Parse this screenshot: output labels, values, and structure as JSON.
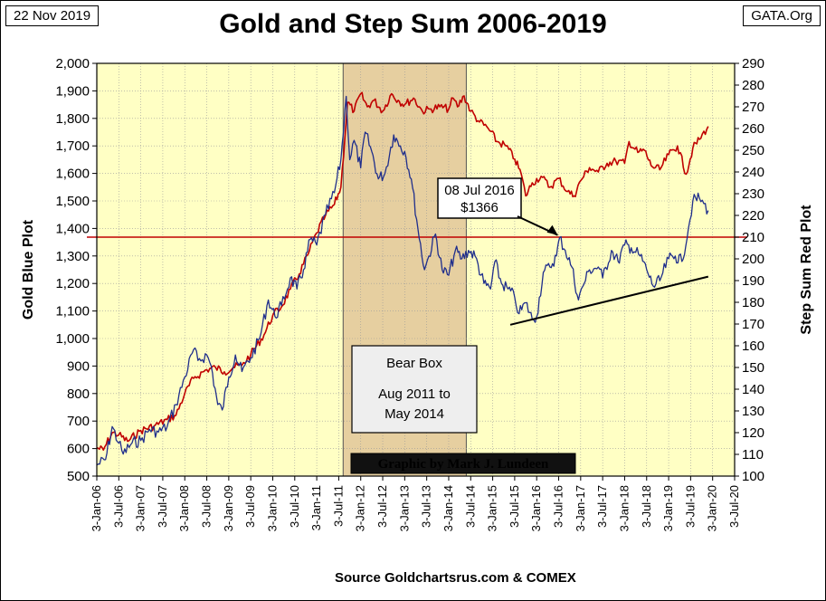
{
  "header": {
    "date": "22 Nov 2019",
    "site": "GATA.Org",
    "title": "Gold and Step Sum 2006-2019",
    "source": "Source Goldchartsrus.com & COMEX"
  },
  "colors": {
    "plot_bg": "#ffffc4",
    "bear_box": "#e6cfa0",
    "gold_line": "#1f2e8c",
    "step_line": "#c00000",
    "ref_line": "#c00000",
    "trend_line": "#000000"
  },
  "annotations": {
    "callout_line1": "08 Jul 2016",
    "callout_line2": "$1366",
    "bear_box_line1": "Bear Box",
    "bear_box_line2": "Aug 2011 to",
    "bear_box_line3": "May 2014",
    "credit": "Graphic by Mark J. Lundeen"
  },
  "chart_data": {
    "type": "line",
    "title": "Gold and Step Sum 2006-2019",
    "ylabel_left": "Gold    Blue Plot",
    "ylabel_right": "Step Sum      Red Plot",
    "ylim_left": [
      500,
      2000
    ],
    "ylim_right": [
      100,
      290
    ],
    "yticks_left": [
      "500",
      "600",
      "700",
      "800",
      "900",
      "1,000",
      "1,100",
      "1,200",
      "1,300",
      "1,400",
      "1,500",
      "1,600",
      "1,700",
      "1,800",
      "1,900",
      "2,000"
    ],
    "yticks_right": [
      "100",
      "110",
      "120",
      "130",
      "140",
      "150",
      "160",
      "170",
      "180",
      "190",
      "200",
      "210",
      "220",
      "230",
      "240",
      "250",
      "260",
      "270",
      "280",
      "290"
    ],
    "xticks": [
      "3-Jan-06",
      "3-Jul-06",
      "3-Jan-07",
      "3-Jul-07",
      "3-Jan-08",
      "3-Jul-08",
      "3-Jan-09",
      "3-Jul-09",
      "3-Jan-10",
      "3-Jul-10",
      "3-Jan-11",
      "3-Jul-11",
      "3-Jan-12",
      "3-Jul-12",
      "3-Jan-13",
      "3-Jul-13",
      "3-Jan-14",
      "3-Jul-14",
      "3-Jan-15",
      "3-Jul-15",
      "3-Jan-16",
      "3-Jul-16",
      "3-Jan-17",
      "3-Jul-17",
      "3-Jan-18",
      "3-Jul-18",
      "3-Jan-19",
      "3-Jul-19",
      "3-Jan-20",
      "3-Jul-20"
    ],
    "x_range_years": [
      2006.0,
      2020.5
    ],
    "bear_box_years": [
      2011.6,
      2014.4
    ],
    "reference_line_step_sum": 210,
    "callout_point": {
      "year": 2016.52,
      "gold": 1366
    },
    "trend_line": {
      "start": {
        "year": 2015.4,
        "gold": 1050
      },
      "end": {
        "year": 2019.9,
        "gold": 1225
      }
    },
    "series": [
      {
        "name": "Gold (Blue Plot)",
        "axis": "left",
        "points": [
          [
            2006.0,
            540
          ],
          [
            2006.2,
            560
          ],
          [
            2006.35,
            680
          ],
          [
            2006.5,
            620
          ],
          [
            2006.6,
            580
          ],
          [
            2006.8,
            620
          ],
          [
            2007.0,
            630
          ],
          [
            2007.2,
            670
          ],
          [
            2007.4,
            660
          ],
          [
            2007.6,
            680
          ],
          [
            2007.8,
            760
          ],
          [
            2008.0,
            860
          ],
          [
            2008.2,
            960
          ],
          [
            2008.3,
            920
          ],
          [
            2008.5,
            940
          ],
          [
            2008.6,
            900
          ],
          [
            2008.75,
            760
          ],
          [
            2008.85,
            740
          ],
          [
            2009.0,
            860
          ],
          [
            2009.15,
            940
          ],
          [
            2009.3,
            880
          ],
          [
            2009.5,
            930
          ],
          [
            2009.7,
            1000
          ],
          [
            2009.9,
            1140
          ],
          [
            2010.05,
            1080
          ],
          [
            2010.2,
            1120
          ],
          [
            2010.4,
            1220
          ],
          [
            2010.55,
            1180
          ],
          [
            2010.7,
            1250
          ],
          [
            2010.85,
            1360
          ],
          [
            2011.0,
            1340
          ],
          [
            2011.2,
            1450
          ],
          [
            2011.4,
            1530
          ],
          [
            2011.55,
            1650
          ],
          [
            2011.67,
            1880
          ],
          [
            2011.75,
            1650
          ],
          [
            2011.85,
            1720
          ],
          [
            2012.0,
            1620
          ],
          [
            2012.1,
            1750
          ],
          [
            2012.25,
            1680
          ],
          [
            2012.4,
            1580
          ],
          [
            2012.55,
            1600
          ],
          [
            2012.75,
            1740
          ],
          [
            2012.9,
            1700
          ],
          [
            2013.0,
            1680
          ],
          [
            2013.15,
            1580
          ],
          [
            2013.3,
            1400
          ],
          [
            2013.45,
            1250
          ],
          [
            2013.55,
            1300
          ],
          [
            2013.7,
            1380
          ],
          [
            2013.85,
            1250
          ],
          [
            2014.0,
            1230
          ],
          [
            2014.15,
            1320
          ],
          [
            2014.3,
            1290
          ],
          [
            2014.45,
            1320
          ],
          [
            2014.6,
            1300
          ],
          [
            2014.8,
            1200
          ],
          [
            2014.95,
            1180
          ],
          [
            2015.05,
            1280
          ],
          [
            2015.2,
            1200
          ],
          [
            2015.35,
            1180
          ],
          [
            2015.5,
            1150
          ],
          [
            2015.6,
            1090
          ],
          [
            2015.75,
            1130
          ],
          [
            2015.9,
            1070
          ],
          [
            2016.0,
            1080
          ],
          [
            2016.15,
            1240
          ],
          [
            2016.3,
            1260
          ],
          [
            2016.45,
            1300
          ],
          [
            2016.52,
            1366
          ],
          [
            2016.65,
            1320
          ],
          [
            2016.8,
            1260
          ],
          [
            2016.95,
            1140
          ],
          [
            2017.05,
            1190
          ],
          [
            2017.2,
            1250
          ],
          [
            2017.4,
            1260
          ],
          [
            2017.5,
            1220
          ],
          [
            2017.7,
            1320
          ],
          [
            2017.85,
            1280
          ],
          [
            2018.0,
            1340
          ],
          [
            2018.15,
            1330
          ],
          [
            2018.35,
            1300
          ],
          [
            2018.5,
            1250
          ],
          [
            2018.65,
            1190
          ],
          [
            2018.8,
            1210
          ],
          [
            2019.0,
            1290
          ],
          [
            2019.15,
            1300
          ],
          [
            2019.3,
            1280
          ],
          [
            2019.45,
            1400
          ],
          [
            2019.55,
            1500
          ],
          [
            2019.7,
            1510
          ],
          [
            2019.8,
            1490
          ],
          [
            2019.9,
            1465
          ]
        ]
      },
      {
        "name": "Step Sum (Red Plot)",
        "axis": "right",
        "points": [
          [
            2006.0,
            113
          ],
          [
            2006.15,
            112
          ],
          [
            2006.35,
            120
          ],
          [
            2006.5,
            119
          ],
          [
            2006.7,
            116
          ],
          [
            2007.0,
            121
          ],
          [
            2007.3,
            123
          ],
          [
            2007.6,
            126
          ],
          [
            2007.8,
            128
          ],
          [
            2008.0,
            138
          ],
          [
            2008.2,
            145
          ],
          [
            2008.5,
            149
          ],
          [
            2008.7,
            150
          ],
          [
            2008.9,
            148
          ],
          [
            2009.1,
            150
          ],
          [
            2009.3,
            151
          ],
          [
            2009.5,
            156
          ],
          [
            2009.8,
            165
          ],
          [
            2010.0,
            174
          ],
          [
            2010.2,
            178
          ],
          [
            2010.4,
            186
          ],
          [
            2010.6,
            193
          ],
          [
            2010.8,
            202
          ],
          [
            2011.0,
            212
          ],
          [
            2011.2,
            220
          ],
          [
            2011.4,
            225
          ],
          [
            2011.55,
            233
          ],
          [
            2011.7,
            272
          ],
          [
            2011.85,
            268
          ],
          [
            2012.0,
            276
          ],
          [
            2012.15,
            270
          ],
          [
            2012.3,
            273
          ],
          [
            2012.5,
            268
          ],
          [
            2012.7,
            276
          ],
          [
            2012.85,
            273
          ],
          [
            2013.0,
            271
          ],
          [
            2013.2,
            274
          ],
          [
            2013.4,
            268
          ],
          [
            2013.6,
            269
          ],
          [
            2013.8,
            270
          ],
          [
            2014.0,
            269
          ],
          [
            2014.1,
            274
          ],
          [
            2014.2,
            270
          ],
          [
            2014.35,
            275
          ],
          [
            2014.5,
            268
          ],
          [
            2014.7,
            263
          ],
          [
            2014.9,
            260
          ],
          [
            2015.1,
            254
          ],
          [
            2015.3,
            252
          ],
          [
            2015.5,
            246
          ],
          [
            2015.65,
            239
          ],
          [
            2015.75,
            229
          ],
          [
            2015.9,
            235
          ],
          [
            2016.1,
            238
          ],
          [
            2016.3,
            233
          ],
          [
            2016.5,
            237
          ],
          [
            2016.7,
            231
          ],
          [
            2016.85,
            229
          ],
          [
            2017.0,
            236
          ],
          [
            2017.2,
            242
          ],
          [
            2017.4,
            240
          ],
          [
            2017.6,
            244
          ],
          [
            2017.8,
            245
          ],
          [
            2018.0,
            244
          ],
          [
            2018.1,
            254
          ],
          [
            2018.3,
            249
          ],
          [
            2018.45,
            250
          ],
          [
            2018.6,
            243
          ],
          [
            2018.8,
            241
          ],
          [
            2019.0,
            248
          ],
          [
            2019.2,
            252
          ],
          [
            2019.4,
            239
          ],
          [
            2019.55,
            251
          ],
          [
            2019.7,
            255
          ],
          [
            2019.9,
            261
          ]
        ]
      }
    ]
  }
}
